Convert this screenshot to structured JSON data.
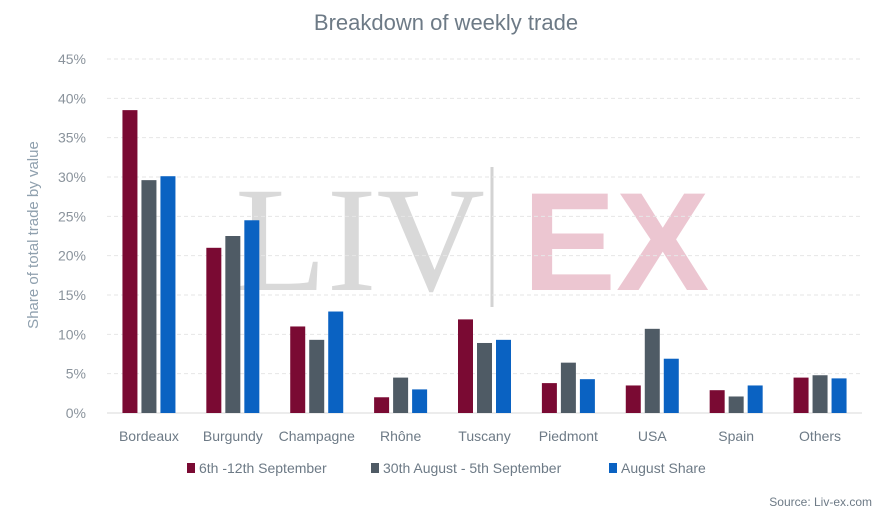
{
  "chart_data": {
    "type": "bar",
    "title": "Breakdown of weekly trade",
    "xlabel": "",
    "ylabel": "Share of total trade by value",
    "ylim": [
      0,
      45
    ],
    "yticks": [
      "0%",
      "5%",
      "10%",
      "15%",
      "20%",
      "25%",
      "30%",
      "35%",
      "40%",
      "45%"
    ],
    "grid": true,
    "legend_position": "bottom",
    "categories": [
      "Bordeaux",
      "Burgundy",
      "Champagne",
      "Rhône",
      "Tuscany",
      "Piedmont",
      "USA",
      "Spain",
      "Others"
    ],
    "series": [
      {
        "name": "6th -12th September",
        "color": "#7a0a33",
        "values": [
          38.5,
          21.0,
          11.0,
          2.0,
          11.9,
          3.8,
          3.5,
          2.9,
          4.5
        ]
      },
      {
        "name": "30th August - 5th September",
        "color": "#4f5b65",
        "values": [
          29.6,
          22.5,
          9.3,
          4.5,
          8.9,
          6.4,
          10.7,
          2.1,
          4.8
        ]
      },
      {
        "name": "August Share",
        "color": "#0a62c2",
        "values": [
          30.1,
          24.5,
          12.9,
          3.0,
          9.3,
          4.3,
          6.9,
          3.5,
          4.4
        ]
      }
    ]
  },
  "watermark": {
    "left": "LIV",
    "right": "EX"
  },
  "source": "Source: Liv-ex.com"
}
